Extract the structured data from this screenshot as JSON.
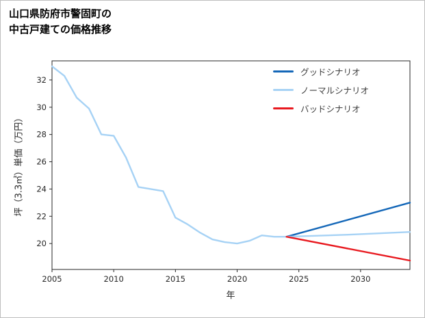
{
  "header": {
    "title_line1": "山口県防府市警固町の",
    "title_line2": "中古戸建ての価格推移"
  },
  "chart_data": {
    "type": "line",
    "title": "山口県防府市警固町の中古戸建ての価格推移",
    "xlabel": "年",
    "ylabel": "坪（3.3㎡）単価（万円）",
    "xlim": [
      2005,
      2034
    ],
    "ylim": [
      18.1,
      33.4
    ],
    "xticks": [
      2005,
      2010,
      2015,
      2020,
      2025,
      2030
    ],
    "yticks": [
      20,
      22,
      24,
      26,
      28,
      30,
      32
    ],
    "grid": false,
    "legend_position": "upper right",
    "legend": [
      "グッドシナリオ",
      "ノーマルシナリオ",
      "バッドシナリオ"
    ],
    "series": [
      {
        "name": "actual",
        "color": "#a6d2f5",
        "in_legend": false,
        "x": [
          2005,
          2006,
          2007,
          2008,
          2009,
          2010,
          2011,
          2012,
          2013,
          2014,
          2015,
          2016,
          2017,
          2018,
          2019,
          2020,
          2021,
          2022,
          2023,
          2024
        ],
        "values": [
          33.0,
          32.3,
          30.7,
          29.9,
          28.0,
          27.9,
          26.3,
          24.15,
          24.0,
          23.85,
          21.9,
          21.4,
          20.8,
          20.3,
          20.1,
          20.0,
          20.2,
          20.6,
          20.5,
          20.5
        ]
      },
      {
        "name": "グッドシナリオ",
        "color": "#1467b8",
        "in_legend": true,
        "x": [
          2024,
          2034
        ],
        "values": [
          20.5,
          23.0
        ]
      },
      {
        "name": "ノーマルシナリオ",
        "color": "#a6d2f5",
        "in_legend": true,
        "x": [
          2024,
          2029,
          2034
        ],
        "values": [
          20.5,
          20.65,
          20.85
        ]
      },
      {
        "name": "バッドシナリオ",
        "color": "#e8191f",
        "in_legend": true,
        "x": [
          2024,
          2034
        ],
        "values": [
          20.5,
          18.75
        ]
      }
    ]
  }
}
